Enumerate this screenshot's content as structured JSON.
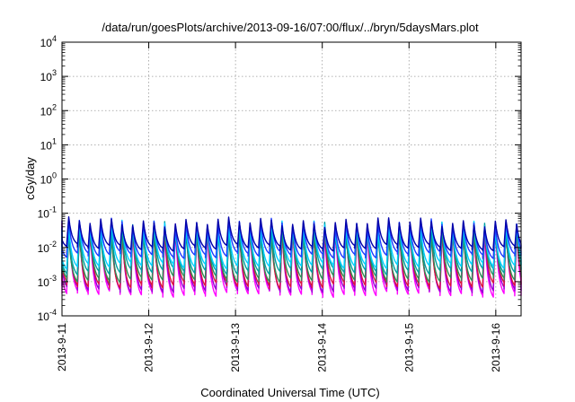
{
  "chart_data": {
    "type": "line",
    "title": "/data/run/goesPlots/archive/2013-09-16/07:00/flux/../bryn/5daysMars.plot",
    "xlabel": "Coordinated Universal Time (UTC)",
    "ylabel": "cGy/day",
    "xlim": [
      "2013-09-11T00:00",
      "2013-09-16T07:00"
    ],
    "x_ticks": [
      "2013-9-11",
      "2013-9-12",
      "2013-9-13",
      "2013-9-14",
      "2013-9-15",
      "2013-9-16"
    ],
    "y_scale": "log",
    "ylim": [
      0.0001,
      10000
    ],
    "y_ticks": [
      {
        "base": "10",
        "exp": "-4",
        "value": 0.0001
      },
      {
        "base": "10",
        "exp": "-3",
        "value": 0.001
      },
      {
        "base": "10",
        "exp": "-2",
        "value": 0.01
      },
      {
        "base": "10",
        "exp": "-1",
        "value": 0.1
      },
      {
        "base": "10",
        "exp": "0",
        "value": 1
      },
      {
        "base": "10",
        "exp": "1",
        "value": 10
      },
      {
        "base": "10",
        "exp": "2",
        "value": 100
      },
      {
        "base": "10",
        "exp": "3",
        "value": 1000
      },
      {
        "base": "10",
        "exp": "4",
        "value": 10000
      }
    ],
    "grid": true,
    "oscillation_period_hours": 2.95,
    "series": [
      {
        "color": "#ff00ff",
        "peak": 0.042,
        "trough": 0.00045
      },
      {
        "color": "#9400d3",
        "peak": 0.045,
        "trough": 0.0006
      },
      {
        "color": "#dc143c",
        "peak": 0.035,
        "trough": 0.0008
      },
      {
        "color": "#2e8b57",
        "peak": 0.03,
        "trough": 0.0012
      },
      {
        "color": "#00a0a0",
        "peak": 0.04,
        "trough": 0.002
      },
      {
        "color": "#00d0ff",
        "peak": 0.045,
        "trough": 0.003
      },
      {
        "color": "#1e3cff",
        "peak": 0.05,
        "trough": 0.006
      },
      {
        "color": "#0000aa",
        "peak": 0.055,
        "trough": 0.01
      }
    ]
  }
}
